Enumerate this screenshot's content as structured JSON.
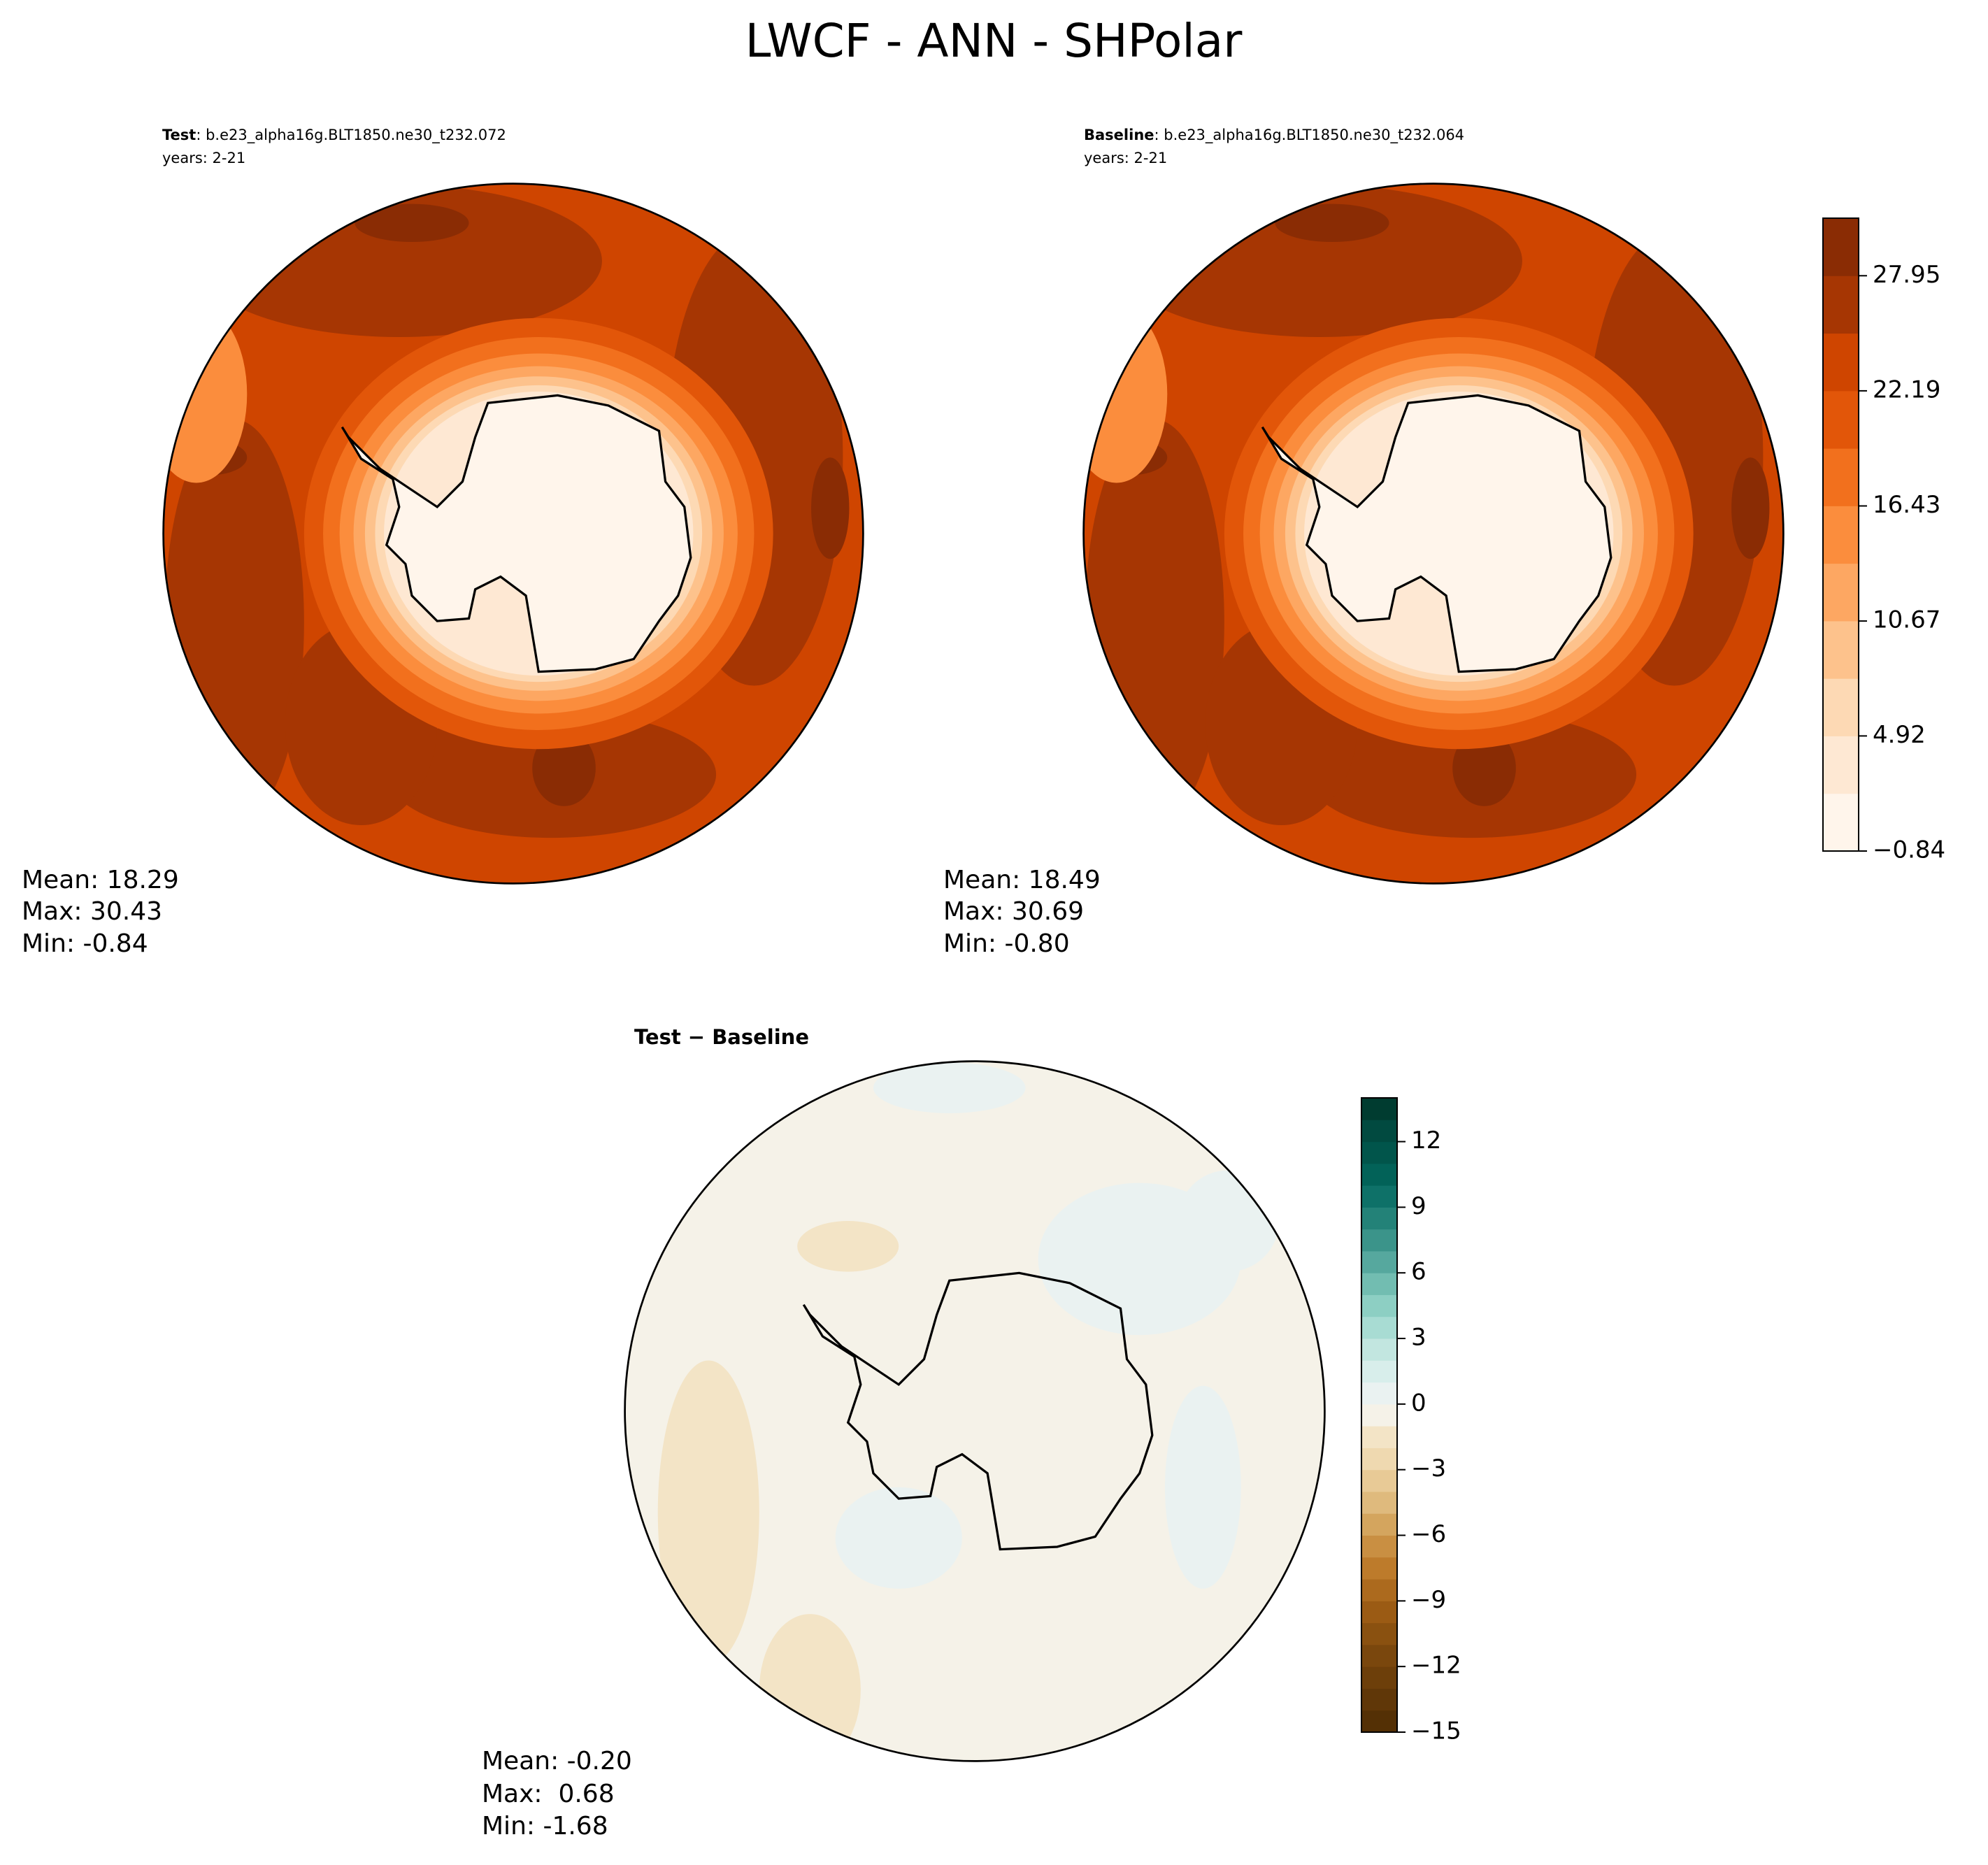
{
  "title": "LWCF - ANN - SHPolar",
  "panels": [
    {
      "label": "Test",
      "case": ": b.e23_alpha16g.BLT1850.ne30_t232.072",
      "years": "years: 2-21",
      "stats": [
        "Mean: 18.29",
        "Max: 30.43",
        "Min: -0.84"
      ]
    },
    {
      "label": "Baseline",
      "case": ": b.e23_alpha16g.BLT1850.ne30_t232.064",
      "years": "years: 2-21",
      "stats": [
        "Mean: 18.49",
        "Max: 30.69",
        "Min: -0.80"
      ]
    },
    {
      "label": "Test − Baseline",
      "stats": [
        "Mean: -0.20",
        "Max:  0.68",
        "Min: -1.68"
      ]
    }
  ],
  "colorbars": [
    {
      "clim": [
        -0.84,
        30.83
      ],
      "ticks": [
        {
          "value": -0.84,
          "label": "−0.84"
        },
        4.92,
        10.67,
        16.43,
        22.19,
        27.95
      ],
      "colors": [
        "#fff5eb",
        "#fee8d3",
        "#fdd9b4",
        "#fdc28c",
        "#fda762",
        "#fb8d3d",
        "#f2701d",
        "#e25609",
        "#cf4500",
        "#a63603",
        "#8a2c04"
      ]
    },
    {
      "clim": [
        -15,
        14
      ],
      "ticks": [
        {
          "value": -15,
          "label": "−15"
        },
        {
          "value": -12,
          "label": "−12"
        },
        {
          "value": -9,
          "label": "−9"
        },
        {
          "value": -6,
          "label": "−6"
        },
        {
          "value": -3,
          "label": "−3"
        },
        0,
        3,
        6,
        9,
        12
      ],
      "colors": [
        "#543005",
        "#603708",
        "#6d3f0a",
        "#7a470d",
        "#8a5110",
        "#9b5b14",
        "#ac6a1e",
        "#bd7b2b",
        "#c98f42",
        "#d4a55e",
        "#dfba7d",
        "#e8ca96",
        "#efd9b0",
        "#f3e4c6",
        "#f5f2e8",
        "#eaf2f1",
        "#d8eeeb",
        "#c2e6e0",
        "#a8dcd3",
        "#8dcfc3",
        "#72bdb1",
        "#56a89e",
        "#3b948a",
        "#238278",
        "#0e7168",
        "#026258",
        "#01554b",
        "#014a40",
        "#003c30"
      ]
    }
  ]
}
